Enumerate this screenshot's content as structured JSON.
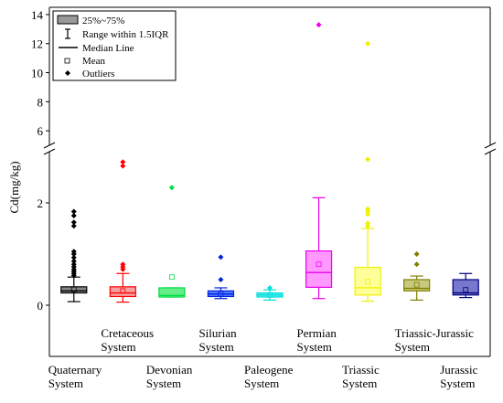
{
  "chart_data": {
    "type": "box",
    "ylabel": "Cd(mg/kg)",
    "axis_break": {
      "lower_range": [
        -1,
        3
      ],
      "upper_range": [
        5,
        14.5
      ]
    },
    "lower_ticks": [
      0,
      2
    ],
    "upper_ticks": [
      6,
      8,
      10,
      12,
      14
    ],
    "legend": {
      "placement": "top-left",
      "items": [
        {
          "key": "box",
          "label": "25%~75%"
        },
        {
          "key": "whisker",
          "label": "Range within 1.5IQR"
        },
        {
          "key": "median",
          "label": "Median Line"
        },
        {
          "key": "mean",
          "label": "Mean"
        },
        {
          "key": "outlier",
          "label": "Outliers"
        }
      ]
    },
    "series": [
      {
        "label1": "Quaternary",
        "label2": "System",
        "label_row": "bottom",
        "color": "#000000",
        "fill": "#888888",
        "q1": 0.24,
        "median": 0.28,
        "q3": 0.36,
        "whisker_low": 0.07,
        "whisker_high": 0.55,
        "mean": 0.31,
        "outliers": [
          0.58,
          0.62,
          0.66,
          0.7,
          0.75,
          0.8,
          0.86,
          0.93,
          1.0,
          1.05,
          1.55,
          1.62,
          1.75,
          1.83
        ]
      },
      {
        "label1": "Cretaceous",
        "label2": "System",
        "label_row": "top",
        "color": "#ff0000",
        "fill": "#f5a0a0",
        "q1": 0.17,
        "median": 0.24,
        "q3": 0.36,
        "whisker_low": 0.06,
        "whisker_high": 0.62,
        "mean": 0.28,
        "outliers": [
          0.7,
          0.75,
          0.8,
          2.72,
          2.8
        ]
      },
      {
        "label1": "Devonian",
        "label2": "System",
        "label_row": "bottom",
        "color": "#00dd44",
        "fill": "#66ee88",
        "q1": 0.16,
        "median": 0.19,
        "q3": 0.34,
        "whisker_low": 0.16,
        "whisker_high": 0.34,
        "mean": 0.55,
        "outliers": [
          2.3
        ]
      },
      {
        "label1": "Silurian",
        "label2": "System",
        "label_row": "top",
        "color": "#0022dd",
        "fill": "#4f7cff",
        "q1": 0.17,
        "median": 0.22,
        "q3": 0.28,
        "whisker_low": 0.13,
        "whisker_high": 0.34,
        "mean": 0.22,
        "outliers": [
          0.5,
          0.94
        ]
      },
      {
        "label1": "Paleogene",
        "label2": "System",
        "label_row": "bottom",
        "color": "#00dddd",
        "fill": "#66eeee",
        "q1": 0.16,
        "median": 0.2,
        "q3": 0.24,
        "whisker_low": 0.1,
        "whisker_high": 0.3,
        "mean": 0.2,
        "outliers": [
          0.34
        ]
      },
      {
        "label1": "Permian",
        "label2": "System",
        "label_row": "top",
        "color": "#ee00ee",
        "fill": "#ff99ff",
        "q1": 0.35,
        "median": 0.64,
        "q3": 1.06,
        "whisker_low": 0.13,
        "whisker_high": 2.1,
        "mean": 0.8,
        "outliers": [
          13.3
        ]
      },
      {
        "label1": "Triassic",
        "label2": "System",
        "label_row": "bottom",
        "color": "#f0f000",
        "fill": "#ffff99",
        "q1": 0.2,
        "median": 0.34,
        "q3": 0.74,
        "whisker_low": 0.08,
        "whisker_high": 1.5,
        "mean": 0.46,
        "outliers": [
          1.55,
          1.6,
          1.78,
          1.83,
          1.88,
          2.85,
          12.0
        ]
      },
      {
        "label1": "Triassic-Jurassic",
        "label2": "System",
        "label_row": "top",
        "color": "#808000",
        "fill": "#c8c880",
        "q1": 0.28,
        "median": 0.33,
        "q3": 0.5,
        "whisker_low": 0.1,
        "whisker_high": 0.57,
        "mean": 0.4,
        "outliers": [
          0.8,
          1.0
        ]
      },
      {
        "label1": "Jurassic",
        "label2": "System",
        "label_row": "bottom",
        "color": "#000080",
        "fill": "#7777cc",
        "q1": 0.2,
        "median": 0.24,
        "q3": 0.5,
        "whisker_low": 0.15,
        "whisker_high": 0.62,
        "mean": 0.3,
        "outliers": []
      }
    ]
  }
}
